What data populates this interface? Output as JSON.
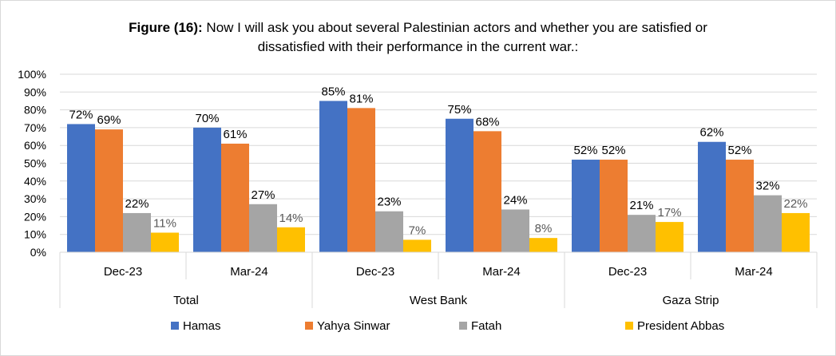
{
  "chart_data": {
    "type": "bar",
    "title_prefix": "Figure (16):",
    "title_line1": " Now I will ask you about several Palestinian actors and whether you are satisfied or",
    "title_line2": "dissatisfied with their performance in the current war.:",
    "ylim": [
      0,
      100
    ],
    "y_ticks": [
      "0%",
      "10%",
      "20%",
      "30%",
      "40%",
      "50%",
      "60%",
      "70%",
      "80%",
      "90%",
      "100%"
    ],
    "grid": true,
    "legend_position": "bottom",
    "groups": [
      "Total",
      "West Bank",
      "Gaza Strip"
    ],
    "categories": [
      "Dec-23",
      "Mar-24",
      "Dec-23",
      "Mar-24",
      "Dec-23",
      "Mar-24"
    ],
    "series": [
      {
        "name": "Hamas",
        "color": "#4472C4",
        "values": [
          72,
          70,
          85,
          75,
          52,
          62
        ],
        "labels": [
          "72%",
          "70%",
          "85%",
          "75%",
          "52%",
          "62%"
        ]
      },
      {
        "name": "Yahya Sinwar",
        "color": "#ED7D31",
        "values": [
          69,
          61,
          81,
          68,
          52,
          52
        ],
        "labels": [
          "69%",
          "61%",
          "81%",
          "68%",
          "52%",
          "52%"
        ]
      },
      {
        "name": "Fatah",
        "color": "#A5A5A5",
        "values": [
          22,
          27,
          23,
          24,
          21,
          32
        ],
        "labels": [
          "22%",
          "27%",
          "23%",
          "24%",
          "21%",
          "32%"
        ]
      },
      {
        "name": "President  Abbas",
        "color": "#FFC000",
        "values": [
          11,
          14,
          7,
          8,
          17,
          22
        ],
        "labels": [
          "11%",
          "14%",
          "7%",
          "8%",
          "17%",
          "22%"
        ]
      }
    ]
  }
}
